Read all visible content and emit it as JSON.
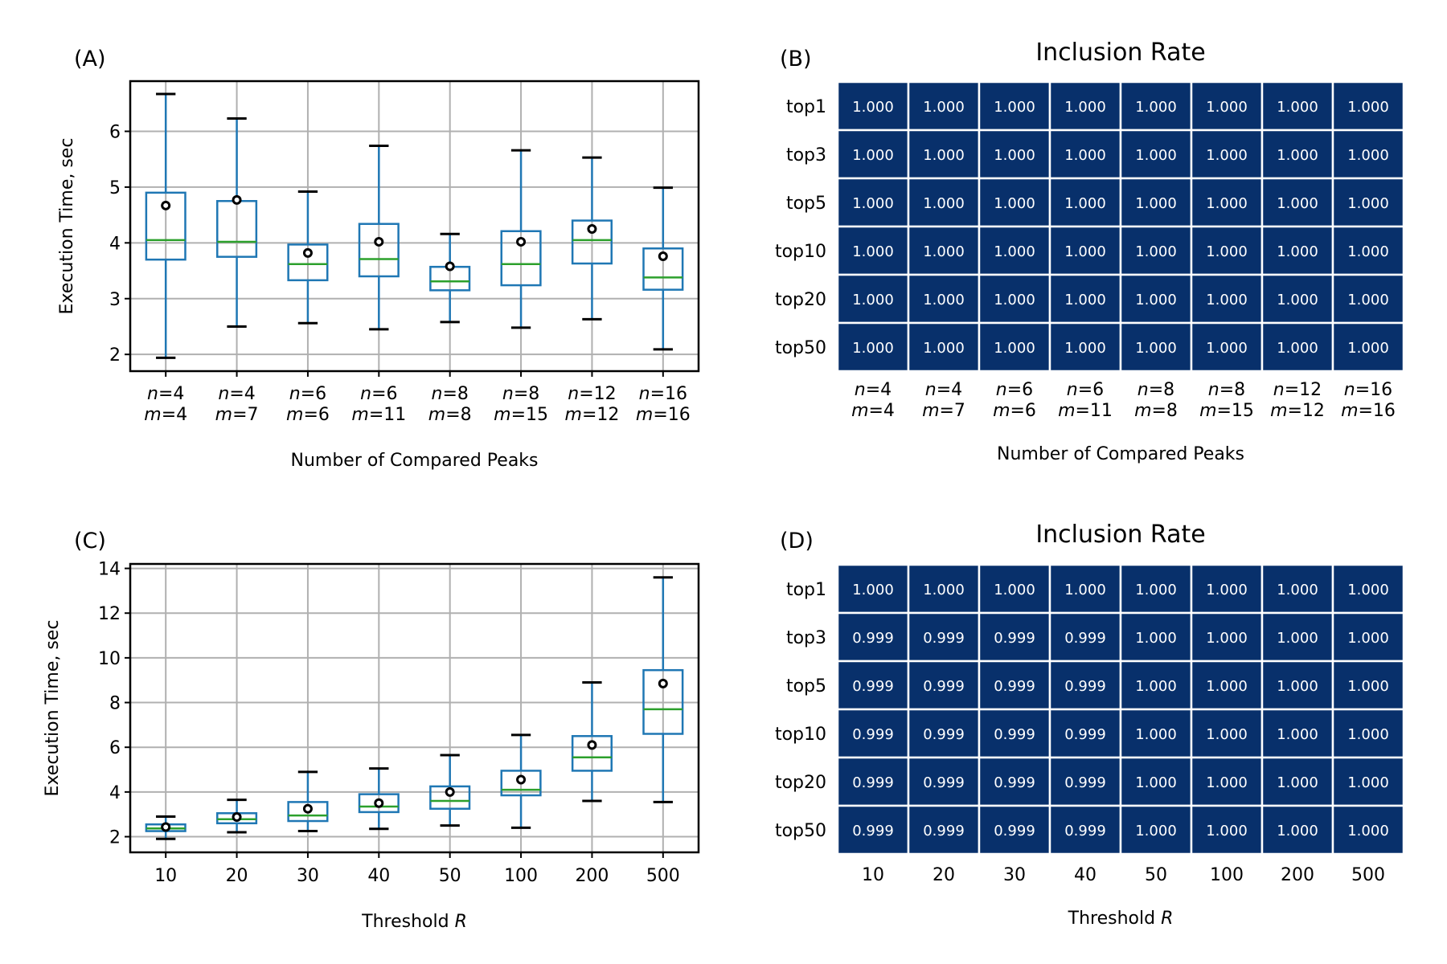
{
  "figure": {
    "panels": [
      {
        "id": "A",
        "label": "(A)"
      },
      {
        "id": "B",
        "label": "(B)"
      },
      {
        "id": "C",
        "label": "(C)"
      },
      {
        "id": "D",
        "label": "(D)"
      }
    ]
  },
  "colors": {
    "box": "#1f77b4",
    "median": "#2ca02c",
    "whisker_cap": "#000000",
    "mean_marker": "#000000",
    "grid": "#b0b0b0",
    "heatmap_cell": "#08306b",
    "heatmap_text": "#ffffff"
  },
  "chart_data": [
    {
      "id": "A",
      "type": "box",
      "title": "",
      "xlabel": "Number of Compared Peaks",
      "ylabel": "Execution Time, sec",
      "ylim": [
        1.7,
        6.9
      ],
      "yticks": [
        2,
        3,
        4,
        5,
        6
      ],
      "grid": true,
      "categories": [
        {
          "n": "n=4",
          "m": "m=4"
        },
        {
          "n": "n=4",
          "m": "m=7"
        },
        {
          "n": "n=6",
          "m": "m=6"
        },
        {
          "n": "n=6",
          "m": "m=11"
        },
        {
          "n": "n=8",
          "m": "m=8"
        },
        {
          "n": "n=8",
          "m": "m=15"
        },
        {
          "n": "n=12",
          "m": "m=12"
        },
        {
          "n": "n=16",
          "m": "m=16"
        }
      ],
      "boxes": [
        {
          "whislo": 1.94,
          "q1": 3.7,
          "med": 4.05,
          "q3": 4.9,
          "whishi": 6.67,
          "mean": 4.67
        },
        {
          "whislo": 2.5,
          "q1": 3.75,
          "med": 4.02,
          "q3": 4.75,
          "whishi": 6.23,
          "mean": 4.77
        },
        {
          "whislo": 2.56,
          "q1": 3.33,
          "med": 3.62,
          "q3": 3.97,
          "whishi": 4.92,
          "mean": 3.82
        },
        {
          "whislo": 2.45,
          "q1": 3.4,
          "med": 3.71,
          "q3": 4.34,
          "whishi": 5.74,
          "mean": 4.02
        },
        {
          "whislo": 2.58,
          "q1": 3.15,
          "med": 3.31,
          "q3": 3.57,
          "whishi": 4.16,
          "mean": 3.58
        },
        {
          "whislo": 2.48,
          "q1": 3.24,
          "med": 3.62,
          "q3": 4.21,
          "whishi": 5.66,
          "mean": 4.02
        },
        {
          "whislo": 2.63,
          "q1": 3.63,
          "med": 4.05,
          "q3": 4.4,
          "whishi": 5.53,
          "mean": 4.25
        },
        {
          "whislo": 2.09,
          "q1": 3.16,
          "med": 3.38,
          "q3": 3.9,
          "whishi": 4.99,
          "mean": 3.76
        }
      ]
    },
    {
      "id": "B",
      "type": "heatmap",
      "title": "Inclusion Rate",
      "xlabel": "Number of Compared Peaks",
      "ylabel": "",
      "rows": [
        "top1",
        "top3",
        "top5",
        "top10",
        "top20",
        "top50"
      ],
      "categories": [
        {
          "n": "n=4",
          "m": "m=4"
        },
        {
          "n": "n=4",
          "m": "m=7"
        },
        {
          "n": "n=6",
          "m": "m=6"
        },
        {
          "n": "n=6",
          "m": "m=11"
        },
        {
          "n": "n=8",
          "m": "m=8"
        },
        {
          "n": "n=8",
          "m": "m=15"
        },
        {
          "n": "n=12",
          "m": "m=12"
        },
        {
          "n": "n=16",
          "m": "m=16"
        }
      ],
      "values": [
        [
          "1.000",
          "1.000",
          "1.000",
          "1.000",
          "1.000",
          "1.000",
          "1.000",
          "1.000"
        ],
        [
          "1.000",
          "1.000",
          "1.000",
          "1.000",
          "1.000",
          "1.000",
          "1.000",
          "1.000"
        ],
        [
          "1.000",
          "1.000",
          "1.000",
          "1.000",
          "1.000",
          "1.000",
          "1.000",
          "1.000"
        ],
        [
          "1.000",
          "1.000",
          "1.000",
          "1.000",
          "1.000",
          "1.000",
          "1.000",
          "1.000"
        ],
        [
          "1.000",
          "1.000",
          "1.000",
          "1.000",
          "1.000",
          "1.000",
          "1.000",
          "1.000"
        ],
        [
          "1.000",
          "1.000",
          "1.000",
          "1.000",
          "1.000",
          "1.000",
          "1.000",
          "1.000"
        ]
      ]
    },
    {
      "id": "C",
      "type": "box",
      "title": "",
      "xlabel": "Threshold R",
      "ylabel": "Execution Time, sec",
      "ylim": [
        1.3,
        14.2
      ],
      "yticks": [
        2,
        4,
        6,
        8,
        10,
        12,
        14
      ],
      "grid": true,
      "categories": [
        "10",
        "20",
        "30",
        "40",
        "50",
        "100",
        "200",
        "500"
      ],
      "boxes": [
        {
          "whislo": 1.9,
          "q1": 2.25,
          "med": 2.37,
          "q3": 2.55,
          "whishi": 2.9,
          "mean": 2.43
        },
        {
          "whislo": 2.2,
          "q1": 2.6,
          "med": 2.78,
          "q3": 3.05,
          "whishi": 3.65,
          "mean": 2.88
        },
        {
          "whislo": 2.25,
          "q1": 2.7,
          "med": 2.95,
          "q3": 3.55,
          "whishi": 4.9,
          "mean": 3.25
        },
        {
          "whislo": 2.35,
          "q1": 3.1,
          "med": 3.35,
          "q3": 3.9,
          "whishi": 5.05,
          "mean": 3.5
        },
        {
          "whislo": 2.5,
          "q1": 3.25,
          "med": 3.6,
          "q3": 4.25,
          "whishi": 5.65,
          "mean": 4.0
        },
        {
          "whislo": 2.4,
          "q1": 3.85,
          "med": 4.1,
          "q3": 4.95,
          "whishi": 6.55,
          "mean": 4.55
        },
        {
          "whislo": 3.6,
          "q1": 4.95,
          "med": 5.55,
          "q3": 6.5,
          "whishi": 8.9,
          "mean": 6.1
        },
        {
          "whislo": 3.55,
          "q1": 6.6,
          "med": 7.7,
          "q3": 9.45,
          "whishi": 13.6,
          "mean": 8.85
        }
      ]
    },
    {
      "id": "D",
      "type": "heatmap",
      "title": "Inclusion Rate",
      "xlabel": "Threshold R",
      "ylabel": "",
      "rows": [
        "top1",
        "top3",
        "top5",
        "top10",
        "top20",
        "top50"
      ],
      "categories": [
        "10",
        "20",
        "30",
        "40",
        "50",
        "100",
        "200",
        "500"
      ],
      "values": [
        [
          "1.000",
          "1.000",
          "1.000",
          "1.000",
          "1.000",
          "1.000",
          "1.000",
          "1.000"
        ],
        [
          "0.999",
          "0.999",
          "0.999",
          "0.999",
          "1.000",
          "1.000",
          "1.000",
          "1.000"
        ],
        [
          "0.999",
          "0.999",
          "0.999",
          "0.999",
          "1.000",
          "1.000",
          "1.000",
          "1.000"
        ],
        [
          "0.999",
          "0.999",
          "0.999",
          "0.999",
          "1.000",
          "1.000",
          "1.000",
          "1.000"
        ],
        [
          "0.999",
          "0.999",
          "0.999",
          "0.999",
          "1.000",
          "1.000",
          "1.000",
          "1.000"
        ],
        [
          "0.999",
          "0.999",
          "0.999",
          "0.999",
          "1.000",
          "1.000",
          "1.000",
          "1.000"
        ]
      ]
    }
  ]
}
